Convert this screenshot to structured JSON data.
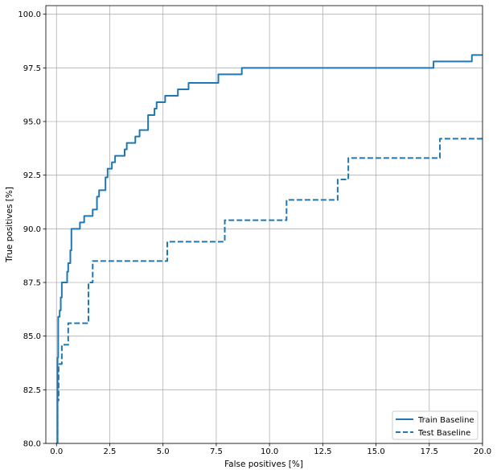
{
  "chart_data": {
    "type": "line",
    "title": "",
    "xlabel": "False positives [%]",
    "ylabel": "True positives [%]",
    "xlim": [
      -0.5,
      20
    ],
    "ylim": [
      80,
      100.4
    ],
    "xticks": [
      0.0,
      2.5,
      5.0,
      7.5,
      10.0,
      12.5,
      15.0,
      17.5,
      20.0
    ],
    "yticks": [
      80.0,
      82.5,
      85.0,
      87.5,
      90.0,
      92.5,
      95.0,
      97.5,
      100.0
    ],
    "xtick_labels": [
      "0.0",
      "2.5",
      "5.0",
      "7.5",
      "10.0",
      "12.5",
      "15.0",
      "17.5",
      "20.0"
    ],
    "ytick_labels": [
      "80.0",
      "82.5",
      "85.0",
      "87.5",
      "90.0",
      "92.5",
      "95.0",
      "97.5",
      "100.0"
    ],
    "grid": true,
    "legend_position": "bottom-right",
    "series": [
      {
        "name": "Train Baseline",
        "style": "solid",
        "color": "#1f77b4",
        "points": [
          [
            0.0,
            80.0
          ],
          [
            0.05,
            80.0
          ],
          [
            0.05,
            84.0
          ],
          [
            0.08,
            84.0
          ],
          [
            0.08,
            85.9
          ],
          [
            0.15,
            85.9
          ],
          [
            0.15,
            86.2
          ],
          [
            0.2,
            86.2
          ],
          [
            0.2,
            86.8
          ],
          [
            0.25,
            86.8
          ],
          [
            0.25,
            87.5
          ],
          [
            0.5,
            87.5
          ],
          [
            0.5,
            88.0
          ],
          [
            0.55,
            88.0
          ],
          [
            0.55,
            88.4
          ],
          [
            0.65,
            88.4
          ],
          [
            0.65,
            89.0
          ],
          [
            0.7,
            89.0
          ],
          [
            0.7,
            90.0
          ],
          [
            1.1,
            90.0
          ],
          [
            1.1,
            90.3
          ],
          [
            1.3,
            90.3
          ],
          [
            1.3,
            90.6
          ],
          [
            1.7,
            90.6
          ],
          [
            1.7,
            90.9
          ],
          [
            1.9,
            90.9
          ],
          [
            1.9,
            91.5
          ],
          [
            2.0,
            91.5
          ],
          [
            2.0,
            91.8
          ],
          [
            2.3,
            91.8
          ],
          [
            2.3,
            92.4
          ],
          [
            2.4,
            92.4
          ],
          [
            2.4,
            92.8
          ],
          [
            2.6,
            92.8
          ],
          [
            2.6,
            93.1
          ],
          [
            2.75,
            93.1
          ],
          [
            2.75,
            93.4
          ],
          [
            3.2,
            93.4
          ],
          [
            3.2,
            93.7
          ],
          [
            3.3,
            93.7
          ],
          [
            3.3,
            94.0
          ],
          [
            3.7,
            94.0
          ],
          [
            3.7,
            94.3
          ],
          [
            3.9,
            94.3
          ],
          [
            3.9,
            94.6
          ],
          [
            4.3,
            94.6
          ],
          [
            4.3,
            95.3
          ],
          [
            4.6,
            95.3
          ],
          [
            4.6,
            95.6
          ],
          [
            4.7,
            95.6
          ],
          [
            4.7,
            95.9
          ],
          [
            5.1,
            95.9
          ],
          [
            5.1,
            96.2
          ],
          [
            5.7,
            96.2
          ],
          [
            5.7,
            96.5
          ],
          [
            6.2,
            96.5
          ],
          [
            6.2,
            96.8
          ],
          [
            7.6,
            96.8
          ],
          [
            7.6,
            97.2
          ],
          [
            8.7,
            97.2
          ],
          [
            8.7,
            97.5
          ],
          [
            17.7,
            97.5
          ],
          [
            17.7,
            97.8
          ],
          [
            19.5,
            97.8
          ],
          [
            19.5,
            98.1
          ],
          [
            20.0,
            98.1
          ]
        ]
      },
      {
        "name": "Test Baseline",
        "style": "dashed",
        "color": "#1f77b4",
        "points": [
          [
            0.05,
            80.0
          ],
          [
            0.05,
            82.0
          ],
          [
            0.1,
            82.0
          ],
          [
            0.1,
            83.7
          ],
          [
            0.25,
            83.7
          ],
          [
            0.25,
            84.6
          ],
          [
            0.55,
            84.6
          ],
          [
            0.55,
            85.6
          ],
          [
            1.5,
            85.6
          ],
          [
            1.5,
            87.5
          ],
          [
            1.7,
            87.5
          ],
          [
            1.7,
            88.5
          ],
          [
            5.2,
            88.5
          ],
          [
            5.2,
            89.4
          ],
          [
            7.9,
            89.4
          ],
          [
            7.9,
            90.4
          ],
          [
            10.8,
            90.4
          ],
          [
            10.8,
            91.35
          ],
          [
            13.2,
            91.35
          ],
          [
            13.2,
            92.3
          ],
          [
            13.7,
            92.3
          ],
          [
            13.7,
            93.3
          ],
          [
            18.0,
            93.3
          ],
          [
            18.0,
            94.2
          ],
          [
            20.0,
            94.2
          ]
        ]
      }
    ]
  }
}
